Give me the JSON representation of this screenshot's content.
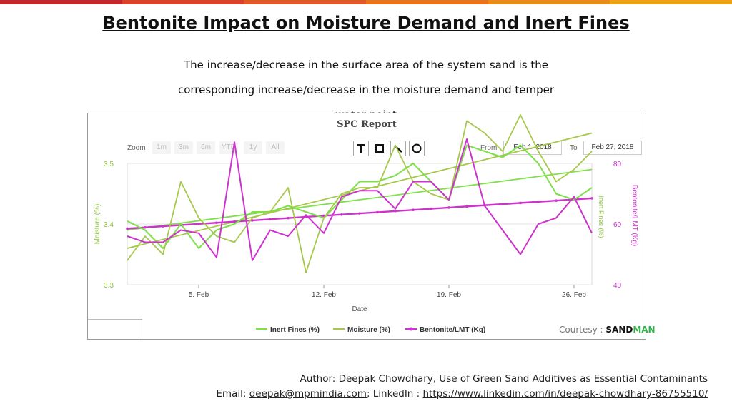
{
  "slide": {
    "title": "Bentonite Impact on Moisture Demand and Inert Fines",
    "subtitle_line1": "The increase/decrease in the surface area of the system sand is the",
    "subtitle_line2": "corresponding increase/decrease in the moisture demand and temper",
    "subtitle_line3": "water point",
    "topbar_colors": [
      "#c0282c",
      "#d9412b",
      "#e05a26",
      "#e6741f",
      "#ea8a1a",
      "#eea016"
    ],
    "courtesy_label": "Courtesy :",
    "courtesy_brand_1": "SAND",
    "courtesy_brand_2": "MAN",
    "author_line": "Author: Deepak Chowdhary, Use of Green Sand Additives as Essential Contaminants",
    "email_label": "Email:",
    "email": "deepak@mpmindia.com",
    "linkedin_label": "; LinkedIn :",
    "linkedin": "https://www.linkedin.com/in/deepak-chowdhary-86755510/"
  },
  "report": {
    "title": "SPC Report",
    "zoom_label": "Zoom",
    "zoom_options": [
      "1m",
      "3m",
      "6m",
      "YTD",
      "1y",
      "All"
    ],
    "tools": [
      "text-tool-icon",
      "rectangle-tool-icon",
      "line-tool-icon",
      "circle-tool-icon"
    ],
    "from_label": "From",
    "from_date": "Feb 1, 2018",
    "to_label": "To",
    "to_date": "Feb 27, 2018"
  },
  "chart_data": {
    "type": "line",
    "title": "SPC Report",
    "xlabel": "Date",
    "x_ticks": [
      "5. Feb",
      "12. Feb",
      "19. Feb",
      "26. Feb"
    ],
    "x_tick_days": [
      5,
      12,
      19,
      26
    ],
    "xlim": [
      1,
      27
    ],
    "grid": true,
    "legend_position": "bottom",
    "y_axes": [
      {
        "label": "Moisture (%)",
        "side": "left",
        "ticks": [
          "3.3",
          "3.4",
          "3.5"
        ],
        "range": [
          3.3,
          3.5
        ],
        "color": "#8cc63f"
      },
      {
        "label": "Inert Fines (%)",
        "side": "right",
        "range": [
          3.3,
          3.5
        ],
        "color": "#8cc63f"
      },
      {
        "label": "Bentonite/LMT (Kg)",
        "side": "right",
        "ticks": [
          "40",
          "60",
          "80"
        ],
        "range": [
          40,
          80
        ],
        "color": "#cc33cc"
      }
    ],
    "series": [
      {
        "name": "Inert Fines (%)",
        "color": "#7fe04a",
        "axis": "Inert Fines (%)",
        "x": [
          1,
          2,
          3,
          4,
          5,
          6,
          7,
          8,
          9,
          10,
          11,
          12,
          13,
          14,
          15,
          16,
          17,
          18,
          19,
          20,
          21,
          22,
          23,
          24,
          25,
          26,
          27
        ],
        "values": [
          3.405,
          3.39,
          3.36,
          3.4,
          3.36,
          3.39,
          3.4,
          3.42,
          3.42,
          3.43,
          3.42,
          3.41,
          3.44,
          3.47,
          3.47,
          3.48,
          3.5,
          3.47,
          3.44,
          3.53,
          3.52,
          3.51,
          3.53,
          3.5,
          3.45,
          3.44,
          3.46
        ],
        "trend": [
          3.39,
          3.49
        ]
      },
      {
        "name": "Moisture (%)",
        "color": "#a6c84a",
        "axis": "Moisture (%)",
        "x": [
          1,
          2,
          3,
          4,
          5,
          6,
          7,
          8,
          9,
          10,
          11,
          12,
          13,
          14,
          15,
          16,
          17,
          18,
          19,
          20,
          21,
          22,
          23,
          24,
          25,
          26,
          27
        ],
        "values": [
          3.34,
          3.38,
          3.35,
          3.47,
          3.41,
          3.38,
          3.37,
          3.41,
          3.42,
          3.46,
          3.32,
          3.41,
          3.45,
          3.46,
          3.46,
          3.53,
          3.47,
          3.45,
          3.44,
          3.57,
          3.55,
          3.52,
          3.58,
          3.52,
          3.47,
          3.49,
          3.52
        ],
        "trend": [
          3.36,
          3.55
        ]
      },
      {
        "name": "Bentonite/LMT (Kg)",
        "color": "#cc33cc",
        "axis": "Bentonite/LMT (Kg)",
        "x": [
          1,
          2,
          3,
          4,
          5,
          6,
          7,
          8,
          9,
          10,
          11,
          12,
          13,
          14,
          15,
          16,
          17,
          18,
          19,
          20,
          21,
          22,
          23,
          24,
          25,
          26,
          27
        ],
        "values": [
          56,
          54,
          54,
          58,
          57,
          49,
          87,
          48,
          58,
          56,
          63,
          57,
          69,
          71,
          71,
          65,
          74,
          74,
          68,
          88,
          66,
          58,
          50,
          60,
          62,
          69,
          57
        ],
        "trend": [
          58.5,
          68.5
        ]
      }
    ]
  }
}
